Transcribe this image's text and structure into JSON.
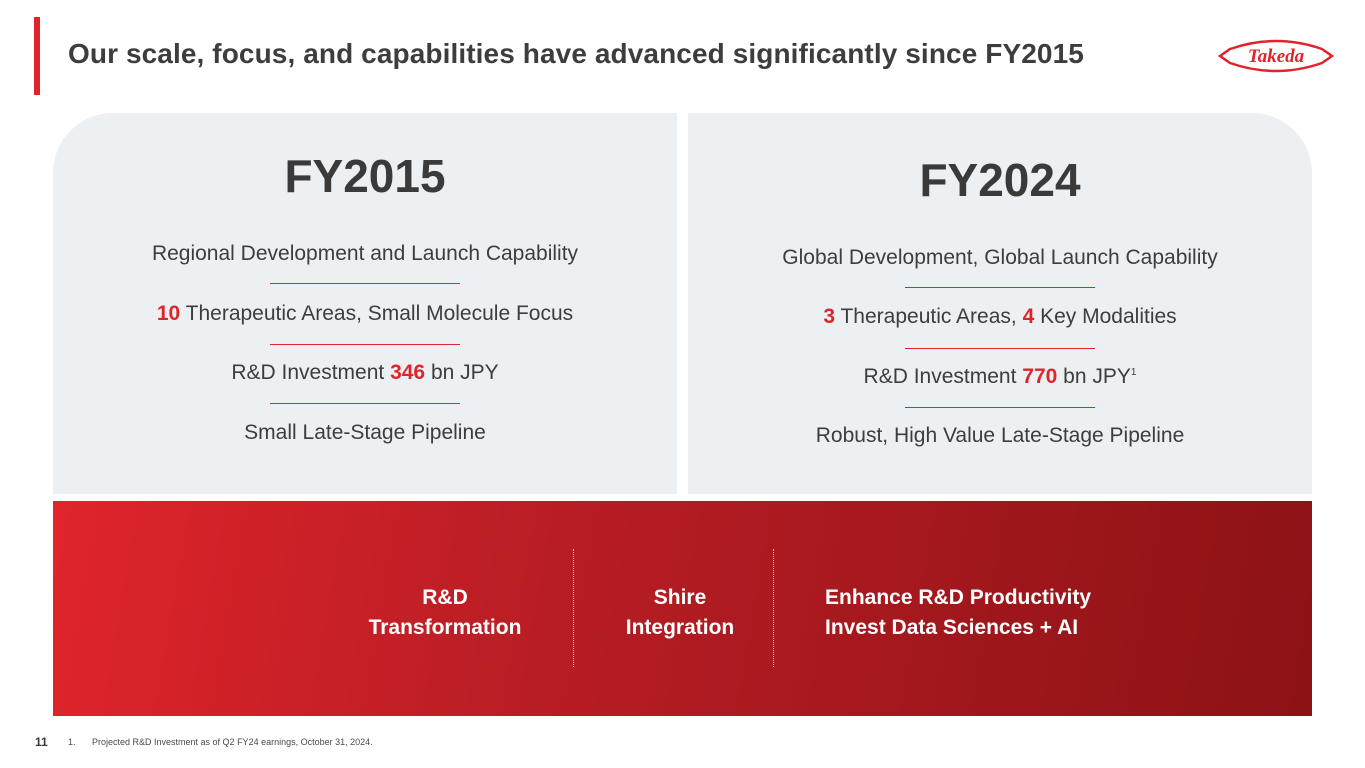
{
  "title": "Our scale, focus, and capabilities have advanced significantly since FY2015",
  "logo": {
    "text": "Takeda",
    "color": "#e0242b"
  },
  "left": {
    "year": "FY2015",
    "line1": "Regional Development and Launch Capability",
    "line2": {
      "hl": "10",
      "rest": " Therapeutic Areas, Small Molecule Focus"
    },
    "line3": {
      "pre": "R&D Investment ",
      "hl": "346",
      "post": " bn JPY"
    },
    "line4": "Small Late-Stage Pipeline"
  },
  "right": {
    "year": "FY2024",
    "line1": "Global Development, Global Launch Capability",
    "line2": {
      "hl1": "3",
      "mid": " Therapeutic Areas, ",
      "hl2": "4",
      "post": " Key Modalities"
    },
    "line3": {
      "pre": "R&D Investment ",
      "hl": "770",
      "post": " bn JPY",
      "sup": "1"
    },
    "line4": "Robust, High Value Late-Stage Pipeline"
  },
  "band": {
    "item1": {
      "l1": "R&D",
      "l2": "Transformation"
    },
    "item2": {
      "l1": "Shire",
      "l2": "Integration"
    },
    "item3": {
      "l1": "Enhance R&D Productivity",
      "l2": "Invest Data Sciences + AI"
    }
  },
  "footer": {
    "page_number": "11",
    "footnote_num": "1.",
    "footnote_text": "Projected R&D Investment as of Q2 FY24 earnings, October 31, 2024."
  },
  "colors": {
    "accent": "#e0242b",
    "panel": "#ecf0f3",
    "band_dark": "#8c1216"
  }
}
